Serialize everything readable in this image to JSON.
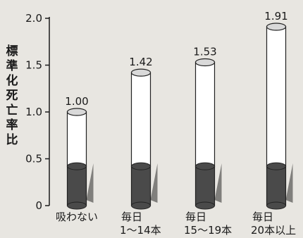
{
  "chart_data": {
    "type": "bar",
    "categories": [
      [
        "吸わない"
      ],
      [
        "毎日",
        "1〜14本"
      ],
      [
        "毎日",
        "15〜19本"
      ],
      [
        "毎日",
        "20本以上"
      ]
    ],
    "values": [
      1.0,
      1.42,
      1.53,
      1.91
    ],
    "value_labels": [
      "1.00",
      "1.42",
      "1.53",
      "1.91"
    ],
    "base_segment_value": 0.42,
    "ylabel": "標準化死亡率比",
    "ylim": [
      0,
      2.0
    ],
    "yticks": [
      0,
      0.5,
      1.0,
      1.5,
      2.0
    ],
    "ytick_labels": [
      "0",
      "0.5",
      "1.0",
      "1.5",
      "2.0"
    ],
    "grid": false,
    "legend": "none",
    "colors": {
      "bar_fill": "#ffffff",
      "bar_base": "#4a4a4a",
      "outline": "#222222",
      "shadow": "#2a2a2a"
    }
  }
}
